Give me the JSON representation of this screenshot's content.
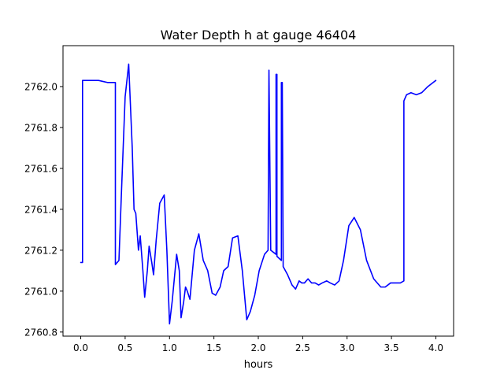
{
  "chart_data": {
    "type": "line",
    "title": "Water Depth h at gauge 46404",
    "xlabel": "hours",
    "ylabel": "",
    "xlim": [
      -0.2,
      4.2
    ],
    "ylim": [
      2760.78,
      2762.2
    ],
    "xticks": [
      0.0,
      0.5,
      1.0,
      1.5,
      2.0,
      2.5,
      3.0,
      3.5,
      4.0
    ],
    "xtick_labels": [
      "0.0",
      "0.5",
      "1.0",
      "1.5",
      "2.0",
      "2.5",
      "3.0",
      "3.5",
      "4.0"
    ],
    "yticks": [
      2760.8,
      2761.0,
      2761.2,
      2761.4,
      2761.6,
      2761.8,
      2762.0
    ],
    "ytick_labels": [
      "2760.8",
      "2761.0",
      "2761.2",
      "2761.4",
      "2761.6",
      "2761.8",
      "2762.0"
    ],
    "grid": false,
    "series": [
      {
        "color": "#0000ff",
        "x": [
          0.0,
          0.02,
          0.02,
          0.1,
          0.2,
          0.3,
          0.35,
          0.39,
          0.39,
          0.43,
          0.46,
          0.5,
          0.54,
          0.58,
          0.6,
          0.62,
          0.65,
          0.67,
          0.7,
          0.72,
          0.75,
          0.77,
          0.8,
          0.82,
          0.85,
          0.89,
          0.94,
          0.97,
          1.0,
          1.03,
          1.08,
          1.11,
          1.13,
          1.16,
          1.18,
          1.2,
          1.23,
          1.28,
          1.33,
          1.38,
          1.43,
          1.48,
          1.52,
          1.57,
          1.61,
          1.66,
          1.71,
          1.77,
          1.82,
          1.87,
          1.91,
          1.96,
          2.01,
          2.07,
          2.11,
          2.12,
          2.14,
          2.14,
          2.2,
          2.2,
          2.21,
          2.21,
          2.26,
          2.26,
          2.27,
          2.28,
          2.28,
          2.33,
          2.38,
          2.42,
          2.46,
          2.49,
          2.52,
          2.56,
          2.6,
          2.64,
          2.68,
          2.72,
          2.77,
          2.81,
          2.86,
          2.91,
          2.96,
          3.02,
          3.08,
          3.15,
          3.22,
          3.3,
          3.38,
          3.43,
          3.49,
          3.54,
          3.6,
          3.64,
          3.64,
          3.67,
          3.72,
          3.78,
          3.84,
          3.91,
          3.97,
          4.0
        ],
        "y": [
          2761.14,
          2761.14,
          2762.03,
          2762.03,
          2762.03,
          2762.02,
          2762.02,
          2762.02,
          2761.13,
          2761.15,
          2761.5,
          2761.95,
          2762.11,
          2761.7,
          2761.4,
          2761.38,
          2761.2,
          2761.27,
          2761.1,
          2760.97,
          2761.1,
          2761.22,
          2761.14,
          2761.08,
          2761.25,
          2761.43,
          2761.47,
          2761.2,
          2760.84,
          2760.95,
          2761.18,
          2761.1,
          2760.87,
          2760.95,
          2761.02,
          2761.0,
          2760.96,
          2761.2,
          2761.28,
          2761.15,
          2761.1,
          2760.99,
          2760.98,
          2761.02,
          2761.1,
          2761.12,
          2761.26,
          2761.27,
          2761.1,
          2760.86,
          2760.9,
          2760.98,
          2761.1,
          2761.18,
          2761.2,
          2762.08,
          2761.2,
          2761.2,
          2761.18,
          2762.06,
          2762.06,
          2761.17,
          2761.15,
          2762.02,
          2762.02,
          2761.15,
          2761.12,
          2761.08,
          2761.03,
          2761.01,
          2761.05,
          2761.04,
          2761.04,
          2761.06,
          2761.04,
          2761.04,
          2761.03,
          2761.04,
          2761.05,
          2761.04,
          2761.03,
          2761.05,
          2761.15,
          2761.32,
          2761.36,
          2761.3,
          2761.15,
          2761.06,
          2761.02,
          2761.02,
          2761.04,
          2761.04,
          2761.04,
          2761.05,
          2761.93,
          2761.96,
          2761.97,
          2761.96,
          2761.97,
          2762.0,
          2762.02,
          2762.03
        ]
      }
    ]
  }
}
